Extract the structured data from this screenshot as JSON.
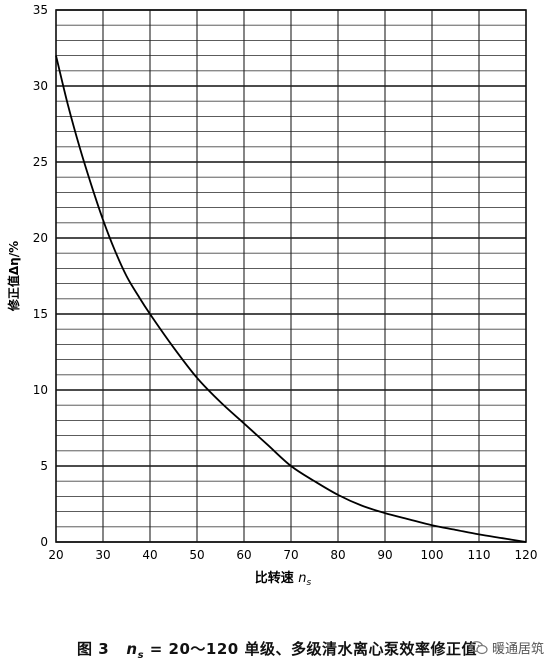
{
  "chart_data": {
    "type": "line",
    "title": "",
    "xlabel": "比转速 n_s",
    "ylabel": "修正值Δη/%",
    "xlim": [
      20,
      120
    ],
    "ylim": [
      0,
      35
    ],
    "x_ticks": [
      20,
      30,
      40,
      50,
      60,
      70,
      80,
      90,
      100,
      110,
      120
    ],
    "y_ticks": [
      0,
      5,
      10,
      15,
      20,
      25,
      30,
      35
    ],
    "grid": true,
    "series": [
      {
        "x": [
          20,
          22.5,
          25,
          27.5,
          30,
          32.5,
          35,
          37.5,
          40,
          45,
          50,
          55,
          60,
          65,
          70,
          75,
          80,
          85,
          90,
          95,
          100,
          105,
          110,
          115,
          120
        ],
        "y": [
          32,
          28.8,
          26,
          23.5,
          21.2,
          19.2,
          17.5,
          16.2,
          15,
          12.8,
          10.8,
          9.2,
          7.8,
          6.4,
          5.0,
          4.0,
          3.1,
          2.4,
          1.9,
          1.5,
          1.1,
          0.8,
          0.5,
          0.25,
          0
        ]
      }
    ]
  },
  "caption": {
    "figure_no": "图 3",
    "text": "n_s = 20～120 单级、多级清水离心泵效率修正值"
  },
  "watermark": {
    "text": "暖通居筑",
    "icon": "wechat-icon"
  }
}
